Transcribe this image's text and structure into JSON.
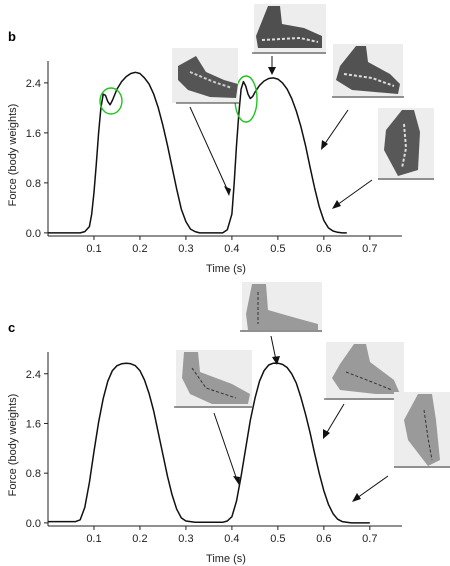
{
  "chart_data": [
    {
      "type": "line",
      "panel_label": "b",
      "xlabel": "Time (s)",
      "ylabel": "Force (body weights)",
      "xlim": [
        0,
        0.77
      ],
      "ylim": [
        -0.05,
        2.75
      ],
      "x_ticks": [
        0.1,
        0.2,
        0.3,
        0.4,
        0.5,
        0.6,
        0.7
      ],
      "y_ticks": [
        0.0,
        0.8,
        1.6,
        2.4
      ],
      "x_tick_labels": [
        "0.1",
        "0.2",
        "0.3",
        "0.4",
        "0.5",
        "0.6",
        "0.7"
      ],
      "y_tick_labels": [
        "0.0",
        "0.8",
        "1.6",
        "2.4"
      ],
      "series": [
        {
          "x": [
            0.0,
            0.07,
            0.08,
            0.09,
            0.095,
            0.1,
            0.105,
            0.11,
            0.115,
            0.12,
            0.125,
            0.13,
            0.135,
            0.14,
            0.15,
            0.16,
            0.17,
            0.18,
            0.19,
            0.2,
            0.21,
            0.22,
            0.23,
            0.24,
            0.25,
            0.26,
            0.27,
            0.28,
            0.29,
            0.3,
            0.31,
            0.32,
            0.33,
            0.35,
            0.38,
            0.39,
            0.4,
            0.405,
            0.41,
            0.415,
            0.42,
            0.425,
            0.43,
            0.435,
            0.44,
            0.445,
            0.45,
            0.46,
            0.47,
            0.48,
            0.49,
            0.5,
            0.51,
            0.52,
            0.53,
            0.54,
            0.55,
            0.56,
            0.57,
            0.58,
            0.59,
            0.6,
            0.61,
            0.62,
            0.63,
            0.64,
            0.65
          ],
          "y": [
            0.0,
            0.0,
            0.02,
            0.1,
            0.3,
            0.65,
            1.1,
            1.6,
            2.0,
            2.22,
            2.2,
            2.1,
            2.05,
            2.12,
            2.3,
            2.42,
            2.5,
            2.55,
            2.57,
            2.55,
            2.48,
            2.38,
            2.22,
            2.0,
            1.72,
            1.4,
            1.05,
            0.7,
            0.38,
            0.18,
            0.06,
            0.02,
            0.0,
            0.0,
            0.0,
            0.05,
            0.3,
            0.8,
            1.4,
            1.9,
            2.3,
            2.42,
            2.35,
            2.22,
            2.15,
            2.18,
            2.25,
            2.36,
            2.43,
            2.47,
            2.48,
            2.46,
            2.4,
            2.3,
            2.15,
            1.95,
            1.7,
            1.4,
            1.05,
            0.72,
            0.42,
            0.2,
            0.08,
            0.03,
            0.01,
            0.0,
            0.0
          ]
        }
      ]
    },
    {
      "type": "line",
      "panel_label": "c",
      "xlabel": "Time (s)",
      "ylabel": "Force (body weights)",
      "xlim": [
        0,
        0.77
      ],
      "ylim": [
        -0.05,
        2.75
      ],
      "x_ticks": [
        0.1,
        0.2,
        0.3,
        0.4,
        0.5,
        0.6,
        0.7
      ],
      "y_ticks": [
        0.0,
        0.8,
        1.6,
        2.4
      ],
      "x_tick_labels": [
        "0.1",
        "0.2",
        "0.3",
        "0.4",
        "0.5",
        "0.6",
        "0.7"
      ],
      "y_tick_labels": [
        "0.0",
        "0.8",
        "1.6",
        "2.4"
      ],
      "series": [
        {
          "x": [
            0.0,
            0.06,
            0.07,
            0.08,
            0.09,
            0.1,
            0.11,
            0.12,
            0.13,
            0.14,
            0.15,
            0.16,
            0.17,
            0.18,
            0.19,
            0.2,
            0.21,
            0.22,
            0.23,
            0.24,
            0.25,
            0.26,
            0.27,
            0.28,
            0.29,
            0.3,
            0.32,
            0.34,
            0.36,
            0.38,
            0.39,
            0.4,
            0.41,
            0.42,
            0.43,
            0.44,
            0.45,
            0.46,
            0.47,
            0.48,
            0.49,
            0.5,
            0.51,
            0.52,
            0.53,
            0.54,
            0.55,
            0.56,
            0.57,
            0.58,
            0.59,
            0.6,
            0.61,
            0.62,
            0.63,
            0.64,
            0.65,
            0.66,
            0.67,
            0.7
          ],
          "y": [
            0.02,
            0.02,
            0.05,
            0.25,
            0.65,
            1.15,
            1.62,
            2.0,
            2.28,
            2.45,
            2.53,
            2.56,
            2.57,
            2.56,
            2.53,
            2.45,
            2.3,
            2.08,
            1.8,
            1.45,
            1.1,
            0.75,
            0.45,
            0.22,
            0.08,
            0.03,
            0.01,
            0.01,
            0.01,
            0.01,
            0.03,
            0.1,
            0.35,
            0.75,
            1.2,
            1.65,
            2.0,
            2.28,
            2.45,
            2.54,
            2.57,
            2.57,
            2.55,
            2.5,
            2.4,
            2.25,
            2.02,
            1.75,
            1.45,
            1.12,
            0.8,
            0.52,
            0.3,
            0.15,
            0.06,
            0.02,
            0.01,
            0.0,
            0.0,
            0.0
          ]
        }
      ]
    }
  ]
}
